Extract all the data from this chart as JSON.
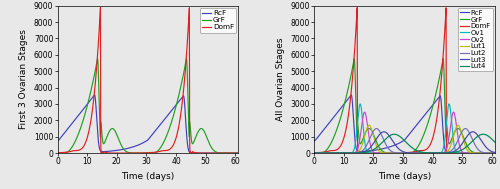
{
  "xlabel": "Time (days)",
  "ylabel_left": "First 3 Ovarian Stages",
  "ylabel_right": "All Ovarian Stages",
  "xlim": [
    0,
    61
  ],
  "ylim": [
    0,
    9000
  ],
  "yticks": [
    0,
    1000,
    2000,
    3000,
    4000,
    5000,
    6000,
    7000,
    8000,
    9000
  ],
  "xticks": [
    0,
    10,
    20,
    30,
    40,
    50,
    60
  ],
  "legend_left": [
    "RcF",
    "GrF",
    "DomF"
  ],
  "legend_right": [
    "RcF",
    "GrF",
    "DomF",
    "Ov1",
    "Ov2",
    "Lut1",
    "Lut2",
    "Lut3",
    "Lut4"
  ],
  "colors_left": [
    "#4040c0",
    "#20a020",
    "#e02020"
  ],
  "colors_right": [
    "#4040c0",
    "#20a020",
    "#e02020",
    "#00bbbb",
    "#cc44cc",
    "#bbbb00",
    "#7070bb",
    "#4444aa",
    "#008855"
  ],
  "figsize": [
    5.0,
    1.89
  ],
  "dpi": 100,
  "bg_color": "#e8e8e8",
  "peak1": 14.5,
  "peak2": 44.5
}
